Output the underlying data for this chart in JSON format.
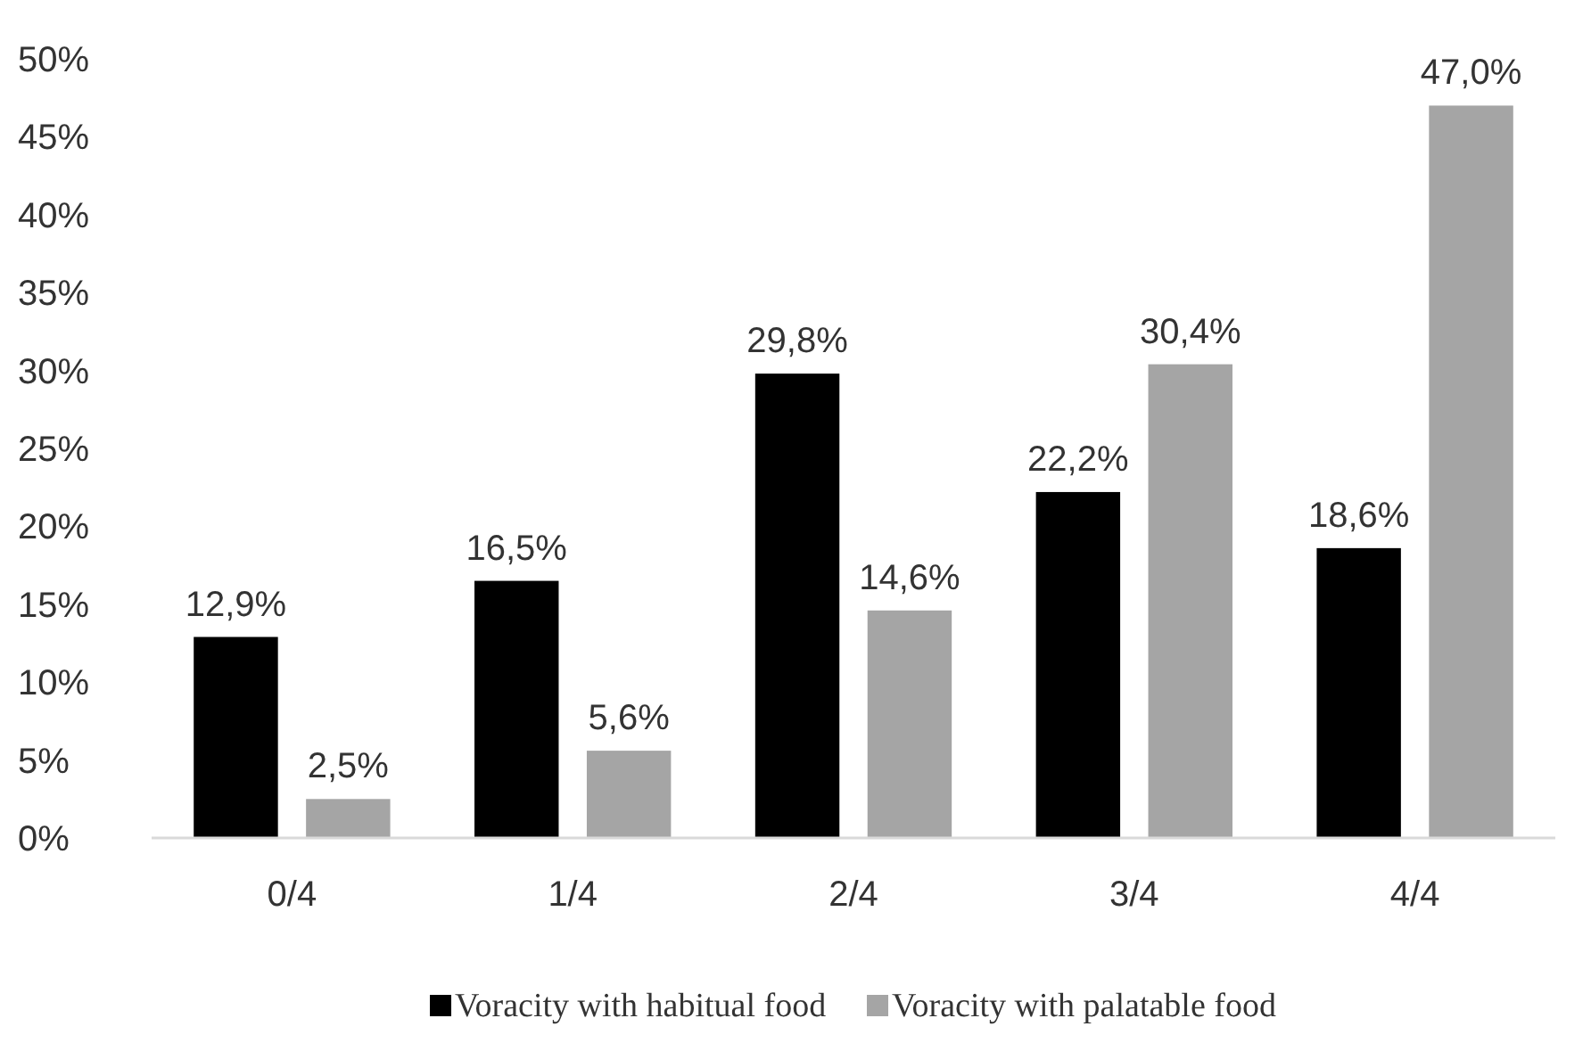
{
  "chart_data": {
    "type": "bar",
    "categories": [
      "0/4",
      "1/4",
      "2/4",
      "3/4",
      "4/4"
    ],
    "series": [
      {
        "name": "Voracity with habitual food",
        "color": "#000000",
        "values": [
          12.9,
          16.5,
          29.8,
          22.2,
          18.6
        ],
        "value_labels": [
          "12,9%",
          "16,5%",
          "29,8%",
          "22,2%",
          "18,6%"
        ]
      },
      {
        "name": "Voracity with palatable food",
        "color": "#a5a5a5",
        "values": [
          2.5,
          5.6,
          14.6,
          30.4,
          47.0
        ],
        "value_labels": [
          "2,5%",
          "5,6%",
          "14,6%",
          "30,4%",
          "47,0%"
        ]
      }
    ],
    "ylim": [
      0,
      50
    ],
    "yticks": [
      {
        "value": 0,
        "label": "0%"
      },
      {
        "value": 5,
        "label": "5%"
      },
      {
        "value": 10,
        "label": "10%"
      },
      {
        "value": 15,
        "label": "15%"
      },
      {
        "value": 20,
        "label": "20%"
      },
      {
        "value": 25,
        "label": "25%"
      },
      {
        "value": 30,
        "label": "30%"
      },
      {
        "value": 35,
        "label": "35%"
      },
      {
        "value": 40,
        "label": "40%"
      },
      {
        "value": 45,
        "label": "45%"
      },
      {
        "value": 50,
        "label": "50%"
      }
    ],
    "grid": false,
    "legend": "bottom"
  }
}
